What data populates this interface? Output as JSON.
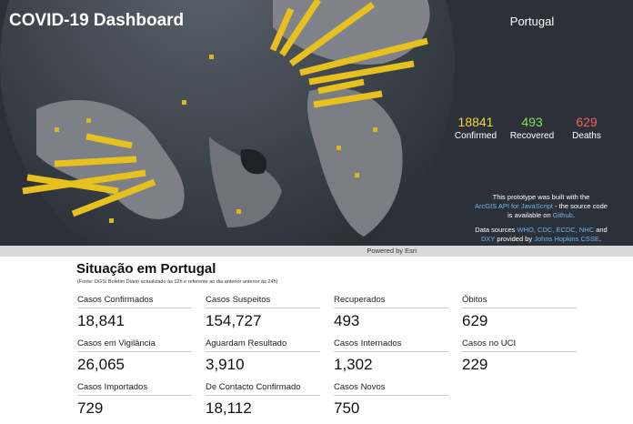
{
  "header": {
    "title": "COVID-19 Dashboard",
    "country": "Portugal"
  },
  "summary": [
    {
      "value": "18841",
      "label": "Confirmed"
    },
    {
      "value": "493",
      "label": "Recovered"
    },
    {
      "value": "629",
      "label": "Deaths"
    }
  ],
  "credits": {
    "prototype": [
      "This prototype was built with the",
      "ArcGIS API for JavaScript",
      "- the source code",
      "is available on",
      "Github",
      "."
    ],
    "sources": [
      "Data sources",
      "WHO, CDC, ECDC, NHC",
      "and",
      "DXY",
      "provided by",
      "Johns Hopkins CSSE",
      "."
    ],
    "powered": "Powered by Esri"
  },
  "section": {
    "title": "Situação em Portugal",
    "note": "(Fonte: DGS/ Boletim Diário actualizado às 12h e referente ao dia anterior anterior às 24h)"
  },
  "stats": [
    {
      "label": "Casos Confirmados",
      "value": "18,841"
    },
    {
      "label": "Casos Suspeitos",
      "value": "154,727"
    },
    {
      "label": "Recuperados",
      "value": "493"
    },
    {
      "label": "Óbitos",
      "value": "629"
    },
    {
      "label": "Casos em Vigilância",
      "value": "26,065"
    },
    {
      "label": "Aguardam Resultado",
      "value": "3,910"
    },
    {
      "label": "Casos Internados",
      "value": "1,302"
    },
    {
      "label": "Casos no UCI",
      "value": "229"
    },
    {
      "label": "Casos Importados",
      "value": "729"
    },
    {
      "label": "De Contacto Confirmado",
      "value": "18,112"
    },
    {
      "label": "Casos Novos",
      "value": "750"
    }
  ]
}
